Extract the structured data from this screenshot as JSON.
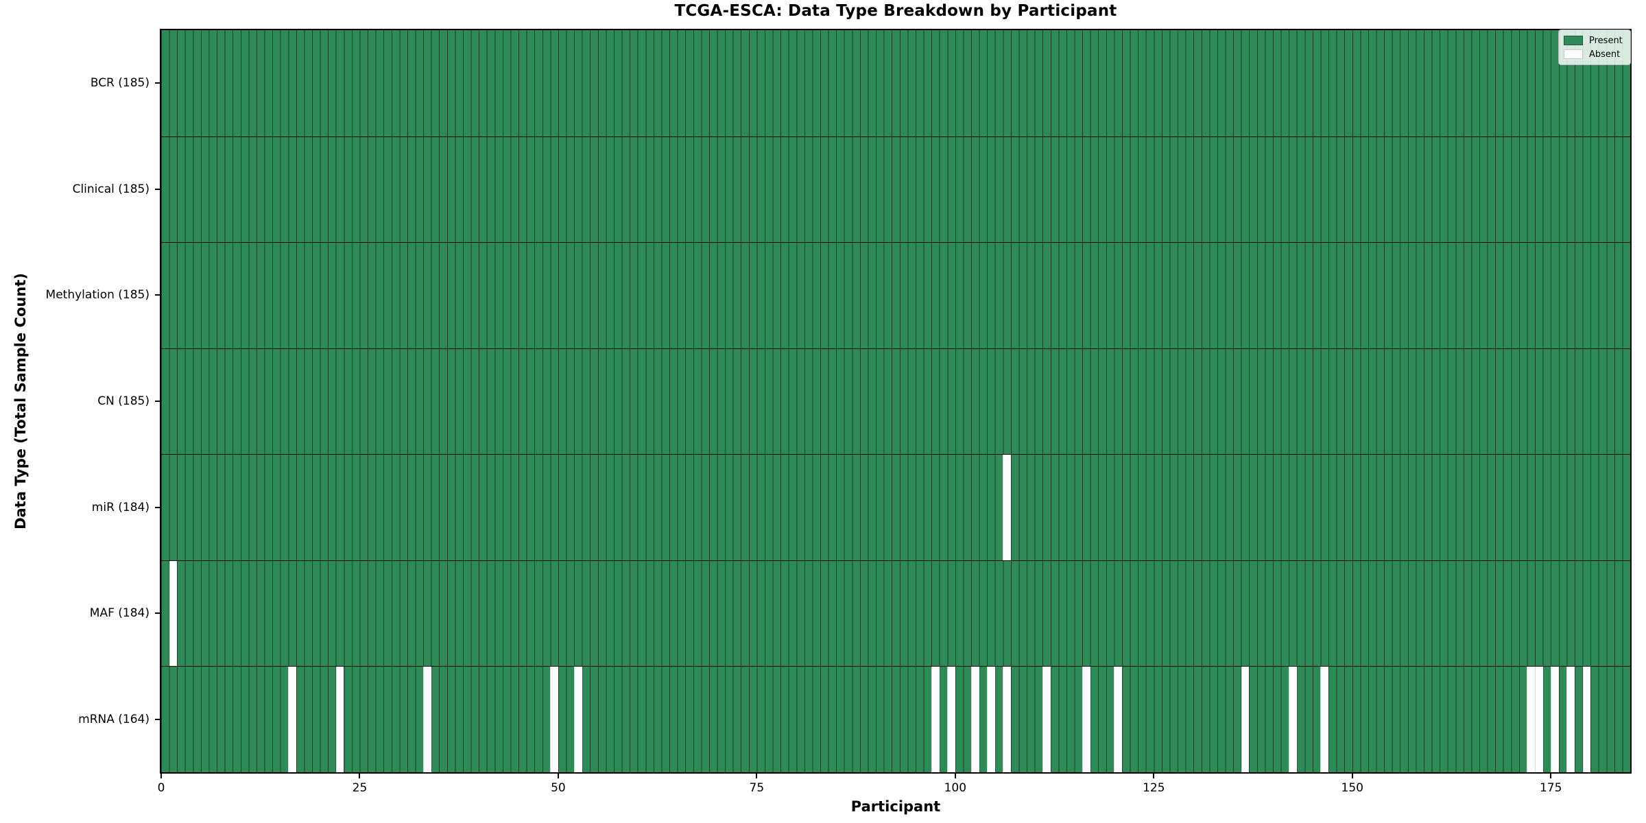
{
  "title": "TCGA-ESCA: Data Type Breakdown by Participant",
  "chart_data": {
    "type": "heatmap",
    "title": "TCGA-ESCA: Data Type Breakdown by Participant",
    "xlabel": "Participant",
    "ylabel": "Data Type (Total Sample Count)",
    "x_ticks": [
      0,
      25,
      50,
      75,
      100,
      125,
      150,
      175
    ],
    "n_participants": 185,
    "x_range": [
      0,
      185
    ],
    "grid": "cell-borders",
    "legend_position": "upper right",
    "rows": [
      {
        "label": "BCR (185)",
        "data_type": "BCR",
        "present_count": 185,
        "absent_participants": []
      },
      {
        "label": "Clinical (185)",
        "data_type": "Clinical",
        "present_count": 185,
        "absent_participants": []
      },
      {
        "label": "Methylation (185)",
        "data_type": "Methylation",
        "present_count": 185,
        "absent_participants": []
      },
      {
        "label": "CN (185)",
        "data_type": "CN",
        "present_count": 185,
        "absent_participants": []
      },
      {
        "label": "miR (184)",
        "data_type": "miR",
        "present_count": 184,
        "absent_participants": [
          106
        ]
      },
      {
        "label": "MAF (184)",
        "data_type": "MAF",
        "present_count": 184,
        "absent_participants": [
          1
        ]
      },
      {
        "label": "mRNA (164)",
        "data_type": "mRNA",
        "present_count": 164,
        "absent_participants": [
          16,
          22,
          33,
          49,
          52,
          97,
          99,
          102,
          104,
          106,
          111,
          116,
          120,
          136,
          142,
          146,
          172,
          173,
          175,
          177,
          179
        ]
      }
    ],
    "legend": [
      {
        "label": "Present",
        "color": "#2e8b57"
      },
      {
        "label": "Absent",
        "color": "#ffffff"
      }
    ],
    "colors": {
      "present": "#2e8b57",
      "absent": "#ffffff",
      "cell_edge": "rgba(0,0,0,0.55)",
      "row_separator": "#0a0a0a",
      "spine": "#000000"
    }
  }
}
